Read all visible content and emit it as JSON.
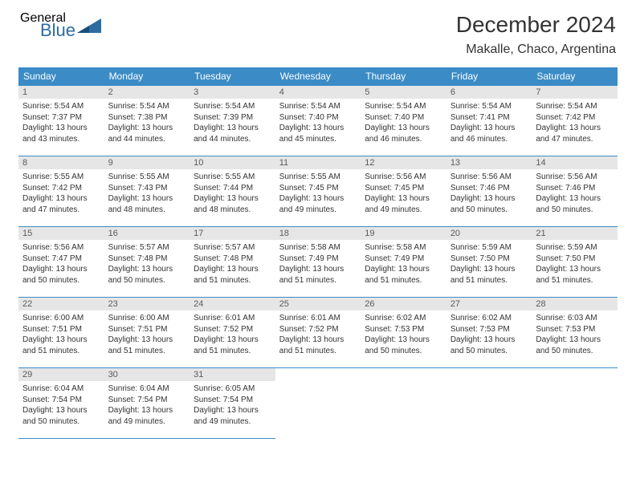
{
  "brand": {
    "general": "General",
    "blue": "Blue"
  },
  "title": "December 2024",
  "location": "Makalle, Chaco, Argentina",
  "colors": {
    "header_bg": "#3b8bc6",
    "header_text": "#ffffff",
    "daynum_bg": "#e6e6e6",
    "daynum_text": "#5a5a5a",
    "rule": "#3b8bc6",
    "body_text": "#333333",
    "logo_gray": "#5a5a5a",
    "logo_blue": "#2d6ca2"
  },
  "weekdays": [
    "Sunday",
    "Monday",
    "Tuesday",
    "Wednesday",
    "Thursday",
    "Friday",
    "Saturday"
  ],
  "weeks": [
    [
      {
        "n": "1",
        "sunrise": "Sunrise: 5:54 AM",
        "sunset": "Sunset: 7:37 PM",
        "day": "Daylight: 13 hours and 43 minutes."
      },
      {
        "n": "2",
        "sunrise": "Sunrise: 5:54 AM",
        "sunset": "Sunset: 7:38 PM",
        "day": "Daylight: 13 hours and 44 minutes."
      },
      {
        "n": "3",
        "sunrise": "Sunrise: 5:54 AM",
        "sunset": "Sunset: 7:39 PM",
        "day": "Daylight: 13 hours and 44 minutes."
      },
      {
        "n": "4",
        "sunrise": "Sunrise: 5:54 AM",
        "sunset": "Sunset: 7:40 PM",
        "day": "Daylight: 13 hours and 45 minutes."
      },
      {
        "n": "5",
        "sunrise": "Sunrise: 5:54 AM",
        "sunset": "Sunset: 7:40 PM",
        "day": "Daylight: 13 hours and 46 minutes."
      },
      {
        "n": "6",
        "sunrise": "Sunrise: 5:54 AM",
        "sunset": "Sunset: 7:41 PM",
        "day": "Daylight: 13 hours and 46 minutes."
      },
      {
        "n": "7",
        "sunrise": "Sunrise: 5:54 AM",
        "sunset": "Sunset: 7:42 PM",
        "day": "Daylight: 13 hours and 47 minutes."
      }
    ],
    [
      {
        "n": "8",
        "sunrise": "Sunrise: 5:55 AM",
        "sunset": "Sunset: 7:42 PM",
        "day": "Daylight: 13 hours and 47 minutes."
      },
      {
        "n": "9",
        "sunrise": "Sunrise: 5:55 AM",
        "sunset": "Sunset: 7:43 PM",
        "day": "Daylight: 13 hours and 48 minutes."
      },
      {
        "n": "10",
        "sunrise": "Sunrise: 5:55 AM",
        "sunset": "Sunset: 7:44 PM",
        "day": "Daylight: 13 hours and 48 minutes."
      },
      {
        "n": "11",
        "sunrise": "Sunrise: 5:55 AM",
        "sunset": "Sunset: 7:45 PM",
        "day": "Daylight: 13 hours and 49 minutes."
      },
      {
        "n": "12",
        "sunrise": "Sunrise: 5:56 AM",
        "sunset": "Sunset: 7:45 PM",
        "day": "Daylight: 13 hours and 49 minutes."
      },
      {
        "n": "13",
        "sunrise": "Sunrise: 5:56 AM",
        "sunset": "Sunset: 7:46 PM",
        "day": "Daylight: 13 hours and 50 minutes."
      },
      {
        "n": "14",
        "sunrise": "Sunrise: 5:56 AM",
        "sunset": "Sunset: 7:46 PM",
        "day": "Daylight: 13 hours and 50 minutes."
      }
    ],
    [
      {
        "n": "15",
        "sunrise": "Sunrise: 5:56 AM",
        "sunset": "Sunset: 7:47 PM",
        "day": "Daylight: 13 hours and 50 minutes."
      },
      {
        "n": "16",
        "sunrise": "Sunrise: 5:57 AM",
        "sunset": "Sunset: 7:48 PM",
        "day": "Daylight: 13 hours and 50 minutes."
      },
      {
        "n": "17",
        "sunrise": "Sunrise: 5:57 AM",
        "sunset": "Sunset: 7:48 PM",
        "day": "Daylight: 13 hours and 51 minutes."
      },
      {
        "n": "18",
        "sunrise": "Sunrise: 5:58 AM",
        "sunset": "Sunset: 7:49 PM",
        "day": "Daylight: 13 hours and 51 minutes."
      },
      {
        "n": "19",
        "sunrise": "Sunrise: 5:58 AM",
        "sunset": "Sunset: 7:49 PM",
        "day": "Daylight: 13 hours and 51 minutes."
      },
      {
        "n": "20",
        "sunrise": "Sunrise: 5:59 AM",
        "sunset": "Sunset: 7:50 PM",
        "day": "Daylight: 13 hours and 51 minutes."
      },
      {
        "n": "21",
        "sunrise": "Sunrise: 5:59 AM",
        "sunset": "Sunset: 7:50 PM",
        "day": "Daylight: 13 hours and 51 minutes."
      }
    ],
    [
      {
        "n": "22",
        "sunrise": "Sunrise: 6:00 AM",
        "sunset": "Sunset: 7:51 PM",
        "day": "Daylight: 13 hours and 51 minutes."
      },
      {
        "n": "23",
        "sunrise": "Sunrise: 6:00 AM",
        "sunset": "Sunset: 7:51 PM",
        "day": "Daylight: 13 hours and 51 minutes."
      },
      {
        "n": "24",
        "sunrise": "Sunrise: 6:01 AM",
        "sunset": "Sunset: 7:52 PM",
        "day": "Daylight: 13 hours and 51 minutes."
      },
      {
        "n": "25",
        "sunrise": "Sunrise: 6:01 AM",
        "sunset": "Sunset: 7:52 PM",
        "day": "Daylight: 13 hours and 51 minutes."
      },
      {
        "n": "26",
        "sunrise": "Sunrise: 6:02 AM",
        "sunset": "Sunset: 7:53 PM",
        "day": "Daylight: 13 hours and 50 minutes."
      },
      {
        "n": "27",
        "sunrise": "Sunrise: 6:02 AM",
        "sunset": "Sunset: 7:53 PM",
        "day": "Daylight: 13 hours and 50 minutes."
      },
      {
        "n": "28",
        "sunrise": "Sunrise: 6:03 AM",
        "sunset": "Sunset: 7:53 PM",
        "day": "Daylight: 13 hours and 50 minutes."
      }
    ],
    [
      {
        "n": "29",
        "sunrise": "Sunrise: 6:04 AM",
        "sunset": "Sunset: 7:54 PM",
        "day": "Daylight: 13 hours and 50 minutes."
      },
      {
        "n": "30",
        "sunrise": "Sunrise: 6:04 AM",
        "sunset": "Sunset: 7:54 PM",
        "day": "Daylight: 13 hours and 49 minutes."
      },
      {
        "n": "31",
        "sunrise": "Sunrise: 6:05 AM",
        "sunset": "Sunset: 7:54 PM",
        "day": "Daylight: 13 hours and 49 minutes."
      },
      null,
      null,
      null,
      null
    ]
  ]
}
